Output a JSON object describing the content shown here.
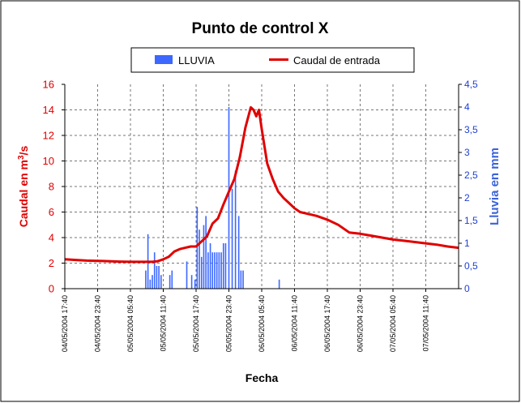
{
  "chart_data": {
    "type": "bar+line",
    "title": "Punto de control X",
    "xlabel": "Fecha",
    "ylabel_left": "Caudal en m³/s",
    "ylabel_right": "Lluvia en mm",
    "ylim_left": [
      0,
      16
    ],
    "ylim_right": [
      0,
      4.5
    ],
    "left_ticks": [
      "0",
      "2",
      "4",
      "6",
      "8",
      "10",
      "12",
      "14",
      "16"
    ],
    "right_ticks": [
      "0",
      "0,5",
      "1",
      "1,5",
      "2",
      "2,5",
      "3",
      "3,5",
      "4",
      "4,5"
    ],
    "x_tick_labels": [
      "04/05/2004 17:40",
      "04/05/2004 23:40",
      "05/05/2004 05:40",
      "05/05/2004 11:40",
      "05/05/2004 17:40",
      "05/05/2004 23:40",
      "06/05/2004 05:40",
      "06/05/2004 11:40",
      "06/05/2004 17:40",
      "06/05/2004 23:40",
      "07/05/2004 05:40",
      "07/05/2004 11:40"
    ],
    "x_range_hours": [
      0,
      72
    ],
    "grid": true,
    "legend": {
      "placement": "top",
      "items": [
        {
          "label": "LLUVIA",
          "kind": "bar",
          "color": "#3c68ff"
        },
        {
          "label": "Caudal de entrada",
          "kind": "line",
          "color": "#e00000"
        }
      ]
    },
    "series": [
      {
        "name": "Caudal de entrada",
        "kind": "line",
        "color": "#e00000",
        "axis": "left",
        "points": [
          [
            0,
            2.3
          ],
          [
            2,
            2.25
          ],
          [
            4,
            2.2
          ],
          [
            6,
            2.18
          ],
          [
            8,
            2.15
          ],
          [
            10,
            2.12
          ],
          [
            12,
            2.1
          ],
          [
            14,
            2.1
          ],
          [
            16,
            2.1
          ],
          [
            17,
            2.15
          ],
          [
            18,
            2.3
          ],
          [
            19,
            2.5
          ],
          [
            20,
            2.9
          ],
          [
            21,
            3.1
          ],
          [
            22,
            3.2
          ],
          [
            23,
            3.3
          ],
          [
            24,
            3.3
          ],
          [
            25,
            3.7
          ],
          [
            26,
            4.1
          ],
          [
            27,
            5.1
          ],
          [
            28,
            5.5
          ],
          [
            29,
            6.6
          ],
          [
            30,
            7.6
          ],
          [
            31,
            8.6
          ],
          [
            32,
            10.3
          ],
          [
            33,
            12.6
          ],
          [
            34,
            14.2
          ],
          [
            34.5,
            14.0
          ],
          [
            35,
            13.5
          ],
          [
            35.5,
            14.0
          ],
          [
            36,
            12.5
          ],
          [
            37,
            9.8
          ],
          [
            38,
            8.6
          ],
          [
            39,
            7.6
          ],
          [
            40,
            7.1
          ],
          [
            41,
            6.7
          ],
          [
            42,
            6.3
          ],
          [
            43,
            6.0
          ],
          [
            44,
            5.9
          ],
          [
            46,
            5.7
          ],
          [
            48,
            5.4
          ],
          [
            50,
            5.0
          ],
          [
            52,
            4.4
          ],
          [
            54,
            4.3
          ],
          [
            56,
            4.15
          ],
          [
            58,
            4.0
          ],
          [
            60,
            3.85
          ],
          [
            62,
            3.75
          ],
          [
            64,
            3.65
          ],
          [
            66,
            3.55
          ],
          [
            68,
            3.45
          ],
          [
            70,
            3.3
          ],
          [
            72,
            3.2
          ]
        ]
      },
      {
        "name": "LLUVIA",
        "kind": "bar",
        "color": "#3c68ff",
        "axis": "right",
        "points": [
          [
            14.8,
            0.4
          ],
          [
            15.2,
            1.2
          ],
          [
            15.6,
            0.2
          ],
          [
            16.0,
            0.3
          ],
          [
            16.4,
            0.8
          ],
          [
            16.8,
            0.5
          ],
          [
            17.2,
            0.5
          ],
          [
            17.6,
            0.3
          ],
          [
            19.2,
            0.3
          ],
          [
            19.6,
            0.4
          ],
          [
            22.3,
            0.6
          ],
          [
            23.2,
            0.3
          ],
          [
            23.8,
            0.2
          ],
          [
            24.2,
            1.8
          ],
          [
            24.6,
            1.3
          ],
          [
            25.0,
            0.7
          ],
          [
            25.4,
            1.4
          ],
          [
            25.8,
            1.6
          ],
          [
            26.2,
            0.8
          ],
          [
            26.6,
            1.0
          ],
          [
            27.0,
            0.8
          ],
          [
            27.4,
            0.8
          ],
          [
            27.8,
            0.8
          ],
          [
            28.2,
            0.8
          ],
          [
            28.6,
            0.8
          ],
          [
            29.0,
            1.0
          ],
          [
            29.4,
            1.0
          ],
          [
            30.0,
            4.0
          ],
          [
            30.6,
            2.2
          ],
          [
            31.2,
            2.6
          ],
          [
            31.8,
            1.6
          ],
          [
            32.2,
            0.4
          ],
          [
            32.6,
            0.4
          ],
          [
            39.2,
            0.2
          ]
        ]
      }
    ]
  }
}
